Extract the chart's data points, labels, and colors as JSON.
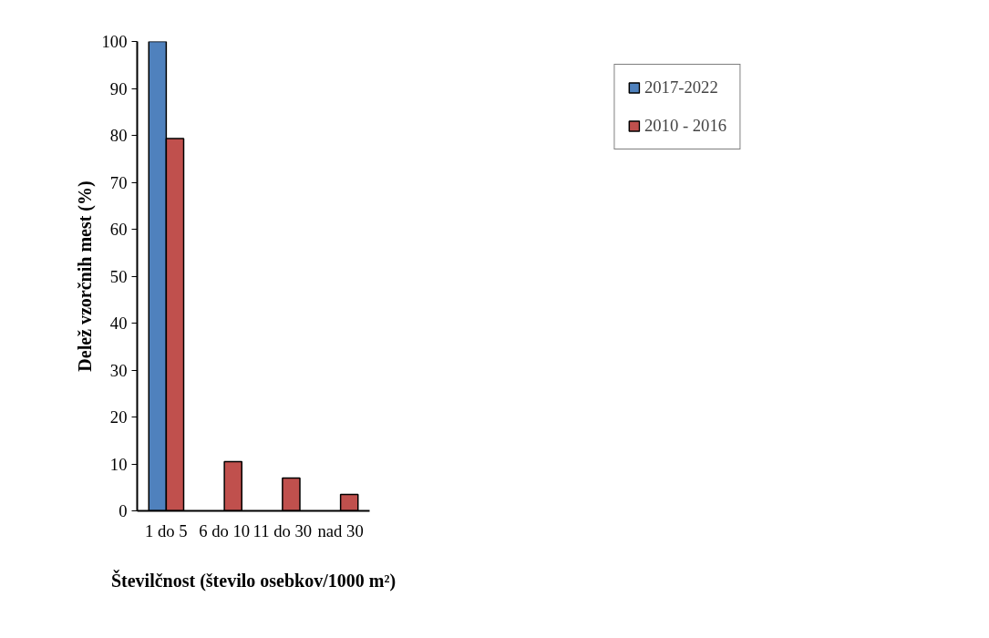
{
  "chart_data": {
    "type": "bar",
    "xlabel": "Številčnost (število osebkov/1000 m²)",
    "ylabel": "Delež vzorčnih mest (%)",
    "categories": [
      "1 do 5",
      "6 do 10",
      "11 do 30",
      "nad 30"
    ],
    "series": [
      {
        "name": "2017-2022",
        "color": "#4f81bd",
        "values": [
          100,
          null,
          null,
          null
        ]
      },
      {
        "name": "2010 - 2016",
        "color": "#c0504d",
        "values": [
          79.3,
          10.5,
          7.0,
          3.5
        ]
      }
    ],
    "ylim": [
      0,
      100
    ],
    "yticks": [
      0,
      10,
      20,
      30,
      40,
      50,
      60,
      70,
      80,
      90,
      100
    ],
    "grid": false,
    "legend": "right"
  }
}
